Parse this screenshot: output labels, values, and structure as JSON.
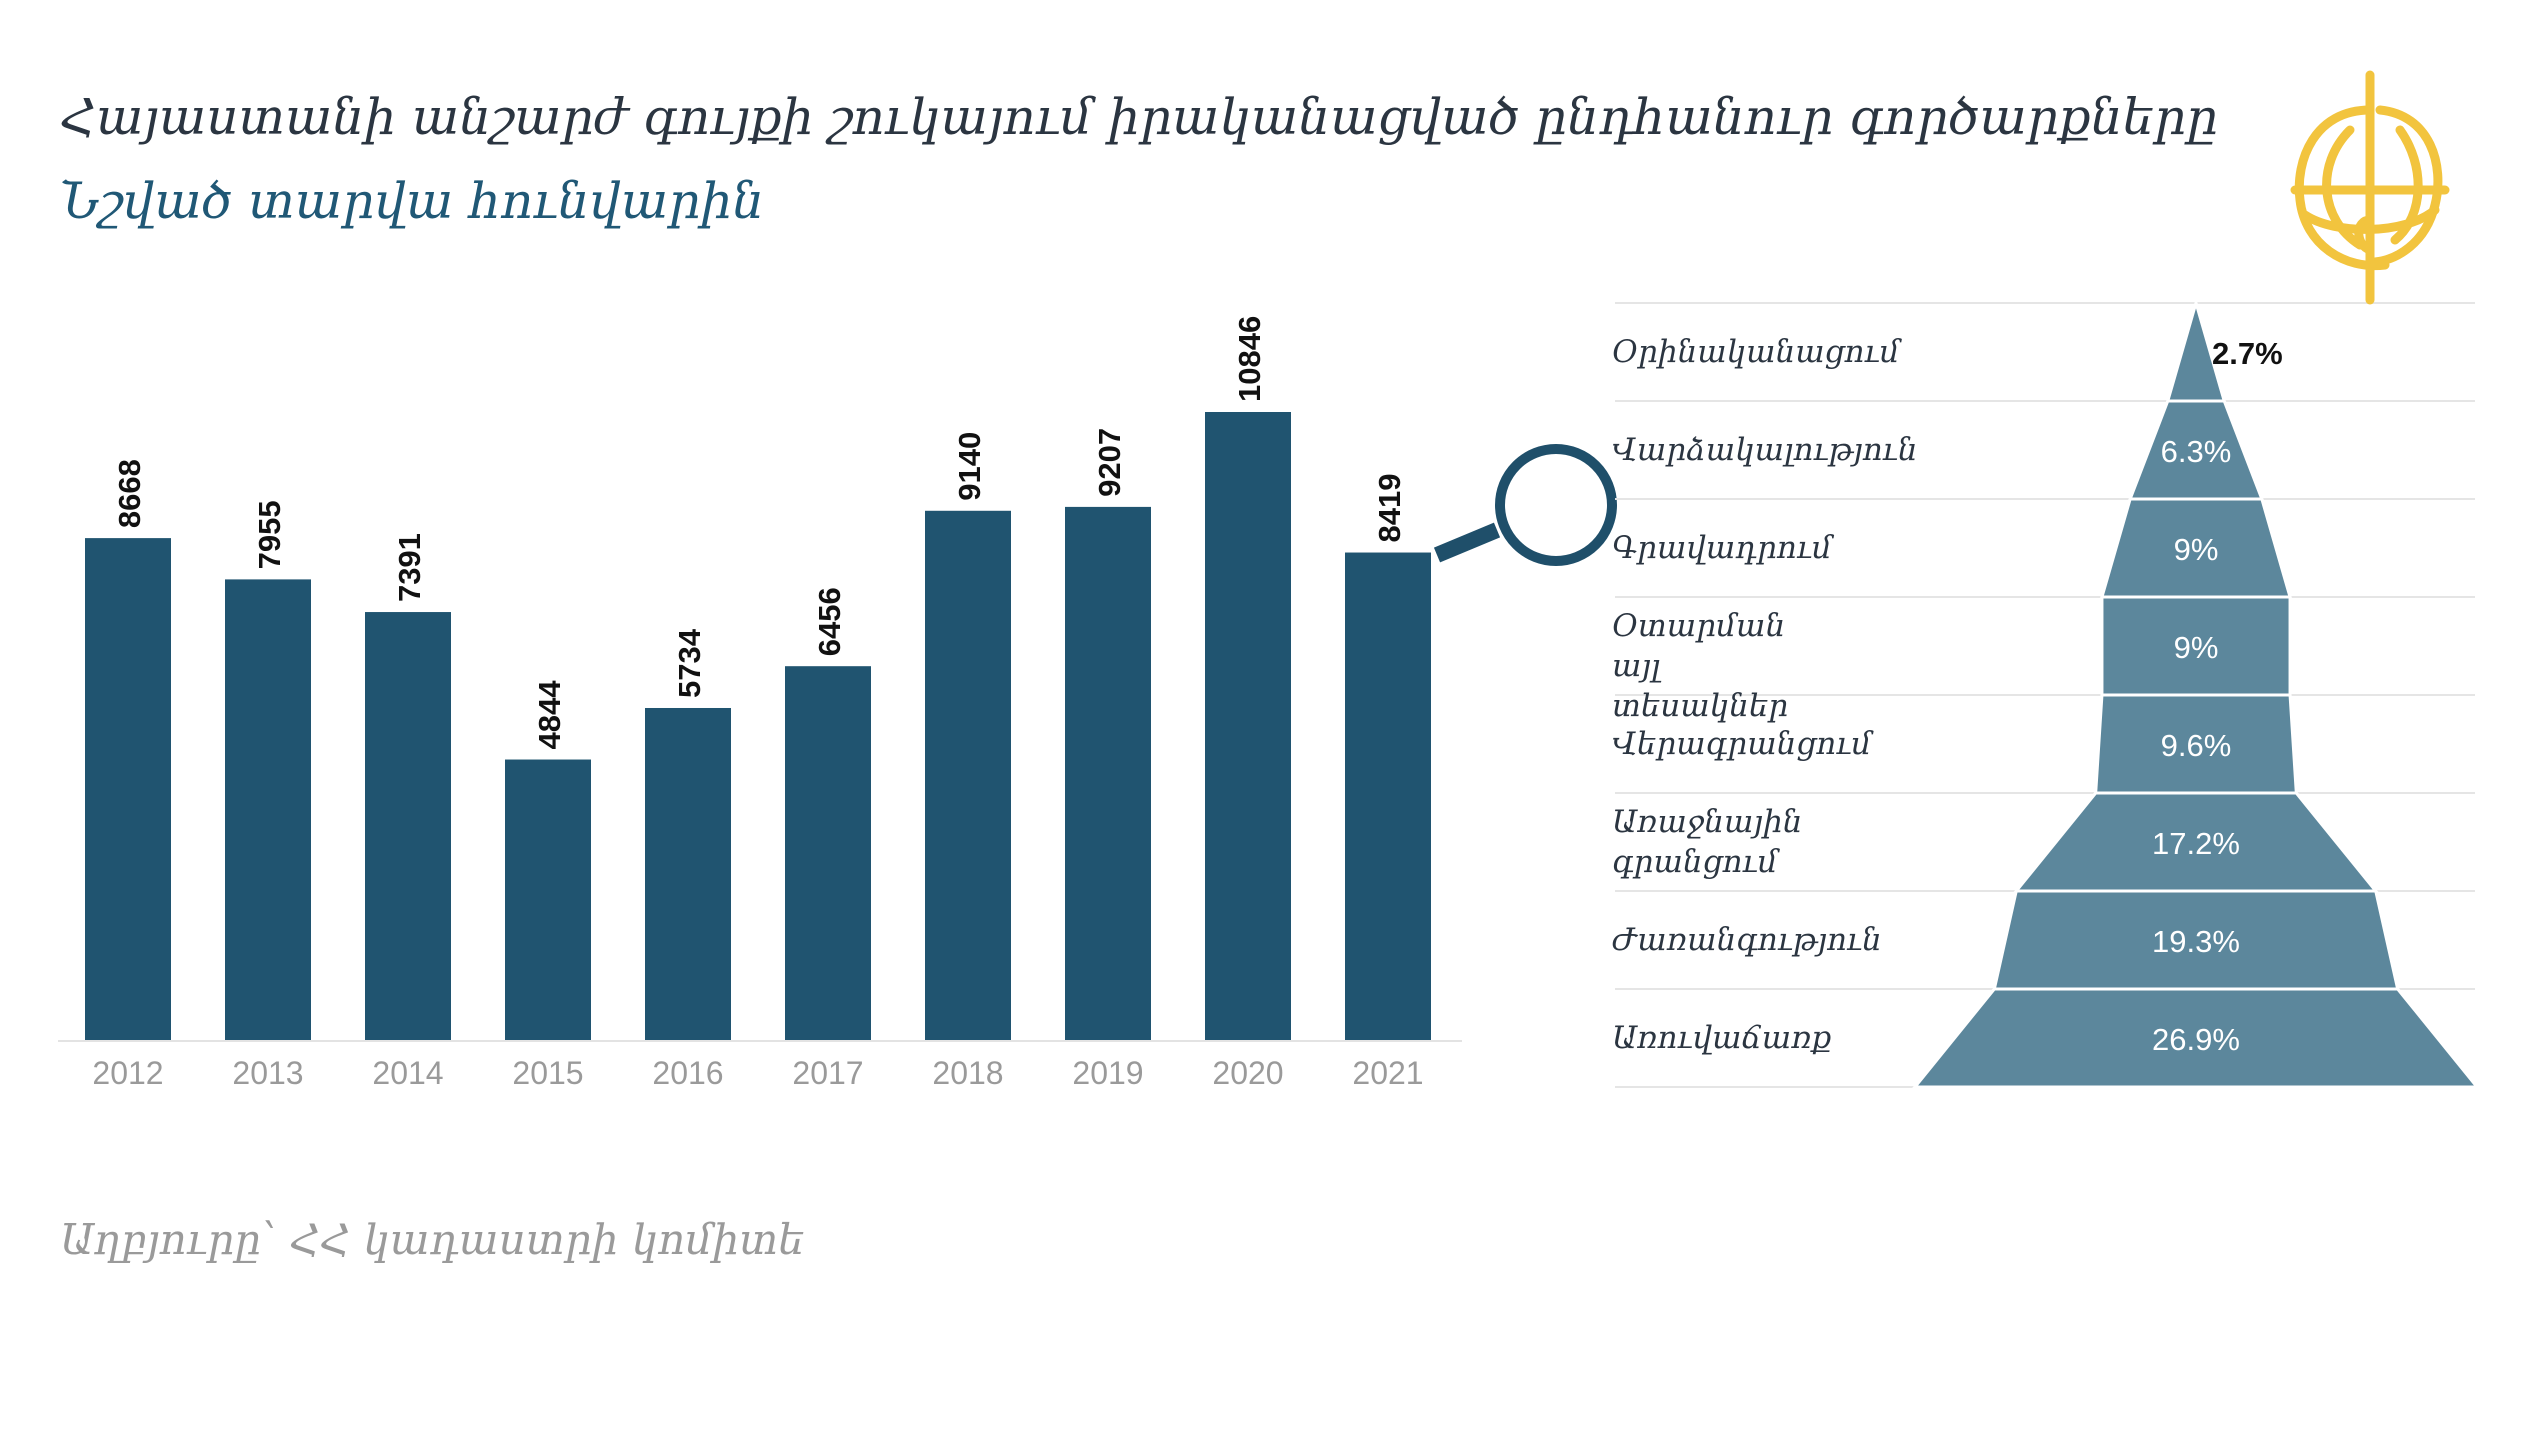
{
  "header": {
    "title": "Հայաստանի անշարժ գույքի շուկայում իրականացված ընդհանուր գործարքները",
    "subtitle": "Նշված տարվա հունվարին"
  },
  "footer": {
    "source": "Աղբյուրը՝ ՀՀ կադաստրի կոմիտե"
  },
  "colors": {
    "bar": "#205470",
    "funnel": "#5c879c",
    "axis_text": "#9a9a9a",
    "logo": "#f2c43e"
  },
  "icons": [
    "logo-icon",
    "magnifier-icon"
  ],
  "chart_data": [
    {
      "type": "bar",
      "categories": [
        "2012",
        "2013",
        "2014",
        "2015",
        "2016",
        "2017",
        "2018",
        "2019",
        "2020",
        "2021"
      ],
      "values": [
        8668,
        7955,
        7391,
        4844,
        5734,
        6456,
        9140,
        9207,
        10846,
        8419
      ],
      "data_labels": [
        "8668",
        "7955",
        "7391",
        "4844",
        "5734",
        "6456",
        "9140",
        "9207",
        "10846",
        "8419"
      ],
      "ylim": [
        0,
        10846
      ],
      "grid": false
    },
    {
      "type": "bar",
      "orientation": "horizontal-funnel",
      "categories": [
        "Օրինականացում",
        "Վարձակալություն",
        "Գրավադրում",
        "Օտարման այլ տեսակներ",
        "Վերագրանցում",
        "Առաջնային գրանցում",
        "Ժառանգություն",
        "Առուվաճառք"
      ],
      "values": [
        2.7,
        6.3,
        9,
        9,
        9.6,
        17.2,
        19.3,
        26.9
      ],
      "data_labels": [
        "2.7%",
        "6.3%",
        "9%",
        "9%",
        "9.6%",
        "17.2%",
        "19.3%",
        "26.9%"
      ],
      "unit": "%",
      "grid": false
    }
  ]
}
